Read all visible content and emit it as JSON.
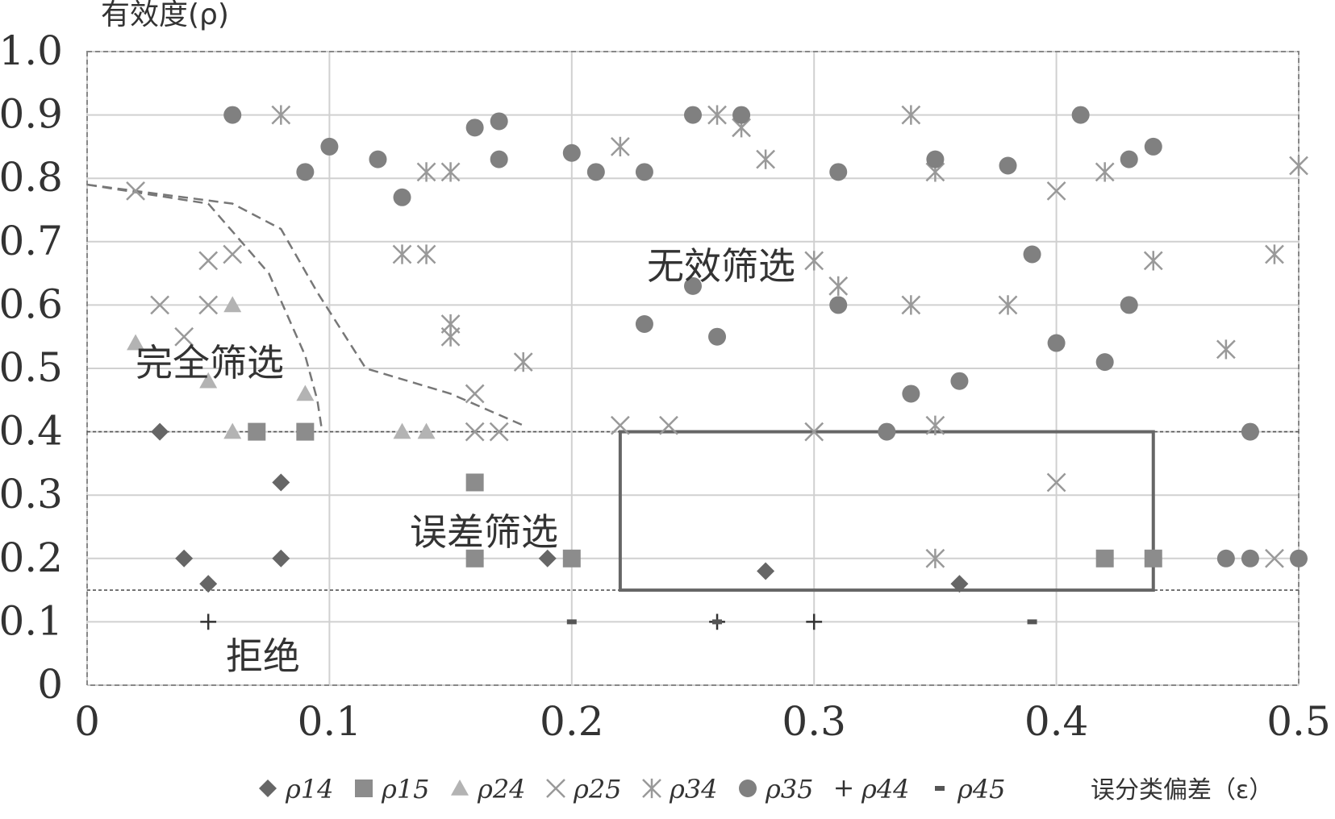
{
  "chart_data": {
    "type": "scatter",
    "ylabel": "有效度(ρ)",
    "xlabel": "误分类偏差（ε）",
    "xlim": [
      0,
      0.5
    ],
    "ylim": [
      0,
      1.0
    ],
    "x_ticks": [
      "0",
      "0.1",
      "0.2",
      "0.3",
      "0.4",
      "0.5"
    ],
    "y_ticks": [
      "0",
      "0.1",
      "0.2",
      "0.3",
      "0.4",
      "0.5",
      "0.6",
      "0.7",
      "0.8",
      "0.9",
      "1.0"
    ],
    "grid": true,
    "legend_position": "bottom",
    "regions": [
      {
        "label": "完全筛选"
      },
      {
        "label": "无效筛选"
      },
      {
        "label": "误差筛选"
      },
      {
        "label": "拒绝"
      }
    ],
    "thresholds": [
      {
        "y": 0.4
      },
      {
        "y": 0.15
      }
    ],
    "rect": {
      "x": [
        0.22,
        0.44
      ],
      "y": [
        0.15,
        0.4
      ]
    },
    "curves": [
      {
        "points": [
          [
            0,
            0.79
          ],
          [
            0.05,
            0.76
          ],
          [
            0.075,
            0.65
          ],
          [
            0.09,
            0.52
          ],
          [
            0.095,
            0.45
          ],
          [
            0.097,
            0.4
          ]
        ]
      },
      {
        "points": [
          [
            0,
            0.79
          ],
          [
            0.06,
            0.76
          ],
          [
            0.08,
            0.72
          ],
          [
            0.095,
            0.62
          ],
          [
            0.115,
            0.5
          ],
          [
            0.15,
            0.46
          ],
          [
            0.18,
            0.41
          ]
        ]
      }
    ],
    "series": [
      {
        "name": "ρ14",
        "marker": "diamond",
        "color": "#666666",
        "points": [
          [
            0.03,
            0.4
          ],
          [
            0.04,
            0.2
          ],
          [
            0.05,
            0.16
          ],
          [
            0.08,
            0.32
          ],
          [
            0.08,
            0.2
          ],
          [
            0.19,
            0.2
          ],
          [
            0.28,
            0.18
          ],
          [
            0.36,
            0.16
          ]
        ]
      },
      {
        "name": "ρ15",
        "marker": "square",
        "color": "#8c8c8c",
        "points": [
          [
            0.07,
            0.4
          ],
          [
            0.09,
            0.4
          ],
          [
            0.16,
            0.32
          ],
          [
            0.16,
            0.2
          ],
          [
            0.2,
            0.2
          ],
          [
            0.42,
            0.2
          ],
          [
            0.44,
            0.2
          ]
        ]
      },
      {
        "name": "ρ24",
        "marker": "triangle",
        "color": "#b3b3b3",
        "points": [
          [
            0.02,
            0.54
          ],
          [
            0.05,
            0.48
          ],
          [
            0.06,
            0.6
          ],
          [
            0.06,
            0.4
          ],
          [
            0.09,
            0.46
          ],
          [
            0.13,
            0.4
          ],
          [
            0.14,
            0.4
          ]
        ]
      },
      {
        "name": "ρ25",
        "marker": "x",
        "color": "#999999",
        "points": [
          [
            0.02,
            0.78
          ],
          [
            0.03,
            0.6
          ],
          [
            0.04,
            0.55
          ],
          [
            0.05,
            0.67
          ],
          [
            0.05,
            0.6
          ],
          [
            0.06,
            0.68
          ],
          [
            0.16,
            0.46
          ],
          [
            0.16,
            0.4
          ],
          [
            0.17,
            0.4
          ],
          [
            0.22,
            0.41
          ],
          [
            0.24,
            0.41
          ],
          [
            0.3,
            0.4
          ],
          [
            0.4,
            0.32
          ],
          [
            0.4,
            0.78
          ],
          [
            0.49,
            0.2
          ]
        ]
      },
      {
        "name": "ρ34",
        "marker": "star",
        "color": "#999999",
        "points": [
          [
            0.08,
            0.9
          ],
          [
            0.13,
            0.68
          ],
          [
            0.14,
            0.68
          ],
          [
            0.14,
            0.81
          ],
          [
            0.15,
            0.81
          ],
          [
            0.15,
            0.57
          ],
          [
            0.15,
            0.55
          ],
          [
            0.18,
            0.51
          ],
          [
            0.22,
            0.85
          ],
          [
            0.26,
            0.9
          ],
          [
            0.27,
            0.88
          ],
          [
            0.28,
            0.83
          ],
          [
            0.3,
            0.67
          ],
          [
            0.31,
            0.63
          ],
          [
            0.34,
            0.9
          ],
          [
            0.34,
            0.6
          ],
          [
            0.35,
            0.81
          ],
          [
            0.35,
            0.41
          ],
          [
            0.35,
            0.2
          ],
          [
            0.38,
            0.6
          ],
          [
            0.42,
            0.81
          ],
          [
            0.44,
            0.67
          ],
          [
            0.47,
            0.53
          ],
          [
            0.49,
            0.68
          ],
          [
            0.5,
            0.82
          ]
        ]
      },
      {
        "name": "ρ35",
        "marker": "circle",
        "color": "#808080",
        "points": [
          [
            0.06,
            0.9
          ],
          [
            0.09,
            0.81
          ],
          [
            0.1,
            0.85
          ],
          [
            0.12,
            0.83
          ],
          [
            0.13,
            0.77
          ],
          [
            0.16,
            0.88
          ],
          [
            0.17,
            0.89
          ],
          [
            0.17,
            0.83
          ],
          [
            0.2,
            0.84
          ],
          [
            0.21,
            0.81
          ],
          [
            0.23,
            0.81
          ],
          [
            0.23,
            0.57
          ],
          [
            0.25,
            0.9
          ],
          [
            0.25,
            0.63
          ],
          [
            0.26,
            0.55
          ],
          [
            0.27,
            0.9
          ],
          [
            0.31,
            0.81
          ],
          [
            0.31,
            0.6
          ],
          [
            0.33,
            0.4
          ],
          [
            0.34,
            0.46
          ],
          [
            0.35,
            0.83
          ],
          [
            0.36,
            0.48
          ],
          [
            0.38,
            0.82
          ],
          [
            0.39,
            0.68
          ],
          [
            0.4,
            0.54
          ],
          [
            0.41,
            0.9
          ],
          [
            0.42,
            0.51
          ],
          [
            0.43,
            0.83
          ],
          [
            0.43,
            0.6
          ],
          [
            0.44,
            0.85
          ],
          [
            0.47,
            0.2
          ],
          [
            0.48,
            0.2
          ],
          [
            0.48,
            0.4
          ],
          [
            0.5,
            0.2
          ]
        ]
      },
      {
        "name": "ρ44",
        "marker": "plus",
        "color": "#333333",
        "points": [
          [
            0.05,
            0.1
          ],
          [
            0.26,
            0.1
          ],
          [
            0.3,
            0.1
          ]
        ]
      },
      {
        "name": "ρ45",
        "marker": "dash",
        "color": "#555555",
        "points": [
          [
            0.2,
            0.1
          ],
          [
            0.26,
            0.1
          ],
          [
            0.39,
            0.1
          ]
        ]
      }
    ]
  }
}
